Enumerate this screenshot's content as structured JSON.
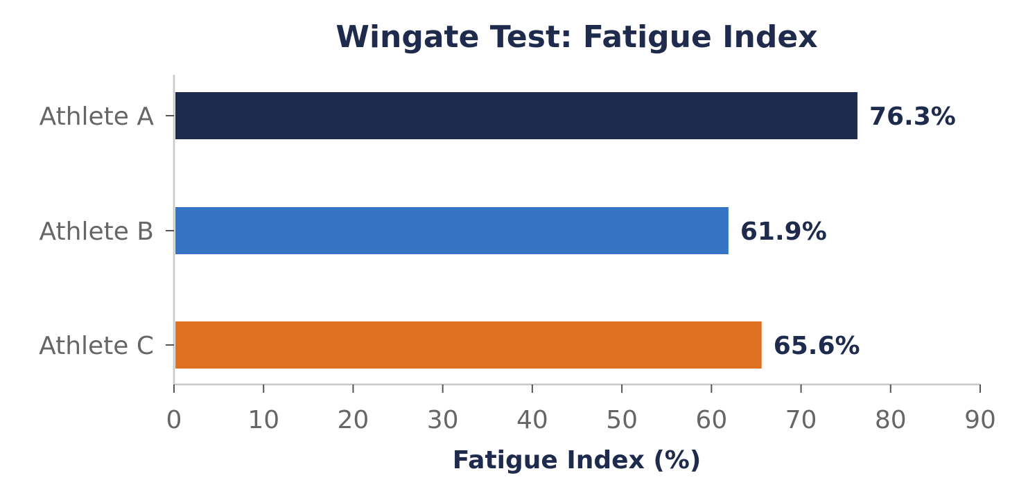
{
  "chart_data": {
    "type": "bar",
    "orientation": "horizontal",
    "title": "Wingate Test: Fatigue Index",
    "xlabel": "Fatigue Index (%)",
    "ylabel": "",
    "categories": [
      "Athlete A",
      "Athlete B",
      "Athlete C"
    ],
    "values": [
      76.3,
      61.9,
      65.6
    ],
    "data_labels": [
      "76.3%",
      "61.9%",
      "65.6%"
    ],
    "bar_colors": [
      "#1e2b4c",
      "#3574c4",
      "#e07022"
    ],
    "xlim": [
      0,
      90
    ],
    "xticks": [
      0,
      10,
      20,
      30,
      40,
      50,
      60,
      70,
      80,
      90
    ],
    "xtick_labels": [
      "0",
      "10",
      "20",
      "30",
      "40",
      "50",
      "60",
      "70",
      "80",
      "90"
    ],
    "grid": false,
    "legend": "none"
  },
  "colors": {
    "text_dark": "#1e2b4c",
    "tick_text": "#666666",
    "axis_line": "#c8c8c8"
  }
}
